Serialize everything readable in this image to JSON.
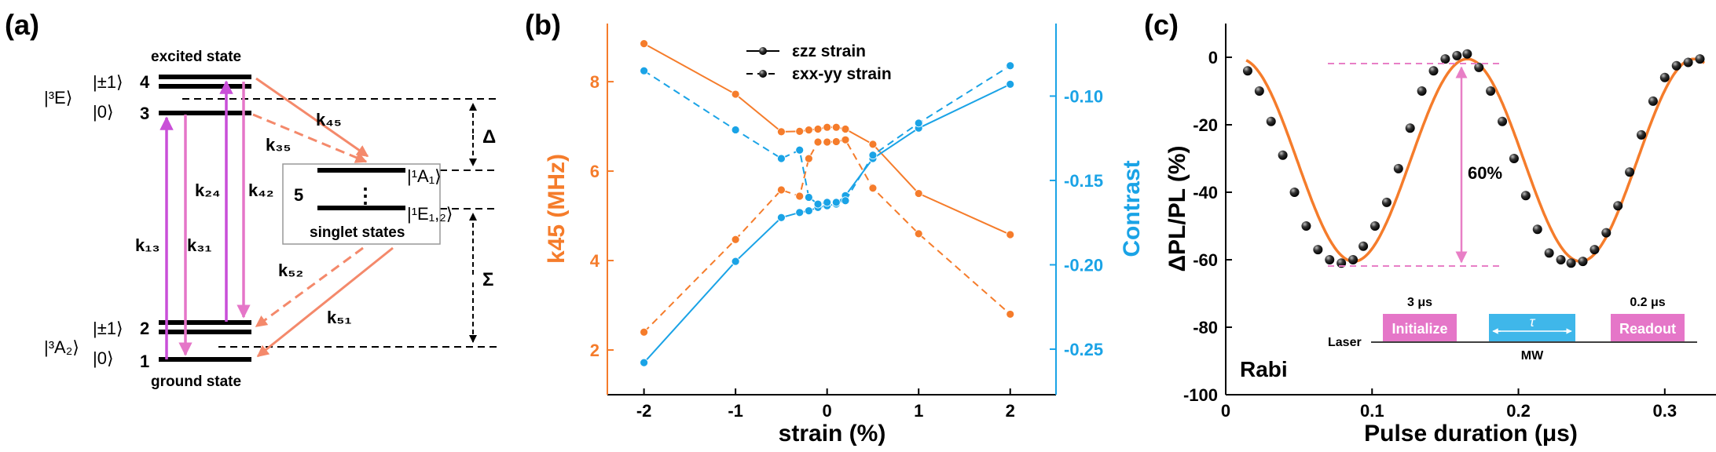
{
  "colors": {
    "orange": "#f57c2b",
    "blue": "#1aa3e6",
    "magenta": "#c94fd8",
    "pink": "#e576c8",
    "salmon": "#f4896b",
    "dashpink": "#e87fc6",
    "black": "#000000"
  },
  "panel_a": {
    "label": "(a)",
    "excited_state": "excited state",
    "ground_state": "ground state",
    "singlet_states": "singlet states",
    "E3": "|³E⟩",
    "A2": "|³A₂⟩",
    "A1": "|¹A₁⟩",
    "E12": "|¹E₁,₂⟩",
    "pm1_top": "|±1⟩",
    "zero_top": "|0⟩",
    "pm1_bot": "|±1⟩",
    "zero_bot": "|0⟩",
    "lev4": "4",
    "lev3": "3",
    "lev2": "2",
    "lev1": "1",
    "lev5": "5",
    "vdots": "⋮",
    "k45": "k₄₅",
    "k35": "k₃₅",
    "k24": "k₂₄",
    "k42": "k₄₂",
    "k13": "k₁₃",
    "k31": "k₃₁",
    "k52": "k₅₂",
    "k51": "k₅₁",
    "delta": "Δ",
    "sigma": "Σ"
  },
  "panel_b": {
    "label": "(b)",
    "chart_data": {
      "type": "line",
      "xlabel": "strain (%)",
      "ylabel_left": "k45 (MHz)",
      "ylabel_right": "Contrast",
      "xlim": [
        -2.4,
        2.5
      ],
      "ylim_left": [
        1.0,
        9.3
      ],
      "ylim_right": [
        -0.277,
        -0.057
      ],
      "xticks": [
        -2,
        -1,
        0,
        1,
        2
      ],
      "yticks_left": [
        2,
        4,
        6,
        8
      ],
      "yticks_right": [
        -0.25,
        -0.2,
        -0.15,
        -0.1
      ],
      "legend": {
        "zz": "εzz strain",
        "xxyy": "εxx-yy strain"
      },
      "series": [
        {
          "name": "k45 εzz",
          "axis": "left",
          "style": "solid",
          "x": [
            -2,
            -1,
            -0.5,
            -0.3,
            -0.2,
            -0.1,
            0,
            0.1,
            0.2,
            0.5,
            1,
            2
          ],
          "y": [
            8.85,
            7.72,
            6.88,
            6.89,
            6.92,
            6.94,
            6.98,
            6.98,
            6.94,
            6.6,
            5.5,
            4.58
          ]
        },
        {
          "name": "k45 εxx-yy",
          "axis": "left",
          "style": "dashed",
          "x": [
            -2,
            -1,
            -0.5,
            -0.3,
            -0.2,
            -0.1,
            0,
            0.1,
            0.2,
            0.5,
            1,
            2
          ],
          "y": [
            2.4,
            4.47,
            5.58,
            5.44,
            6.28,
            6.65,
            6.65,
            6.66,
            6.7,
            5.62,
            4.6,
            2.8
          ]
        },
        {
          "name": "Contrast εzz",
          "axis": "right",
          "style": "solid",
          "x": [
            -2,
            -1,
            -0.5,
            -0.3,
            -0.2,
            -0.1,
            0,
            0.1,
            0.2,
            0.5,
            1,
            2
          ],
          "y": [
            -0.258,
            -0.198,
            -0.172,
            -0.169,
            -0.168,
            -0.166,
            -0.165,
            -0.164,
            -0.159,
            -0.137,
            -0.119,
            -0.093
          ]
        },
        {
          "name": "Contrast εxx-yy",
          "axis": "right",
          "style": "dashed",
          "x": [
            -2,
            -1,
            -0.5,
            -0.3,
            -0.2,
            -0.1,
            0,
            0.1,
            0.2,
            0.5,
            1,
            2
          ],
          "y": [
            -0.085,
            -0.12,
            -0.137,
            -0.132,
            -0.16,
            -0.164,
            -0.163,
            -0.163,
            -0.162,
            -0.135,
            -0.116,
            -0.082
          ]
        }
      ]
    }
  },
  "panel_c": {
    "label": "(c)",
    "chart_data": {
      "type": "scatter",
      "xlabel": "Pulse duration (μs)",
      "ylabel": "ΔPL/PL (%)",
      "xlim": [
        0,
        0.335
      ],
      "ylim": [
        -100,
        10
      ],
      "xticks": [
        0,
        0.1,
        0.2,
        0.3
      ],
      "yticks": [
        -100,
        -80,
        -60,
        -40,
        -20,
        0
      ],
      "fit": {
        "amplitude_pct": 60,
        "period_us": 0.155,
        "peak_at_us": 0.165,
        "offset_pct": -30.5
      },
      "points": {
        "x": [
          0.015,
          0.023,
          0.031,
          0.039,
          0.047,
          0.055,
          0.063,
          0.071,
          0.079,
          0.087,
          0.094,
          0.102,
          0.11,
          0.118,
          0.126,
          0.134,
          0.142,
          0.15,
          0.158,
          0.165,
          0.173,
          0.181,
          0.189,
          0.197,
          0.205,
          0.213,
          0.221,
          0.229,
          0.236,
          0.244,
          0.252,
          0.26,
          0.268,
          0.276,
          0.284,
          0.292,
          0.3,
          0.308,
          0.316,
          0.324
        ],
        "y": [
          -4,
          -10,
          -19,
          -29,
          -40,
          -50,
          -57,
          -60,
          -61,
          -60,
          -56,
          -50,
          -43,
          -33,
          -21,
          -10,
          -4,
          -0.5,
          0.5,
          1,
          -3,
          -10,
          -19,
          -30,
          -41,
          -51,
          -58,
          -60,
          -61,
          -60.5,
          -57,
          -52,
          -44,
          -34,
          -23,
          -13,
          -6,
          -2.5,
          -1.5,
          -0.5
        ]
      },
      "annotation": "60%",
      "panel_text": "Rabi",
      "sequence": {
        "laser": "Laser",
        "mw": "MW",
        "initialize": "Initialize",
        "init_time": "3 μs",
        "tau": "τ",
        "readout": "Readout",
        "readout_time": "0.2 μs"
      }
    }
  }
}
